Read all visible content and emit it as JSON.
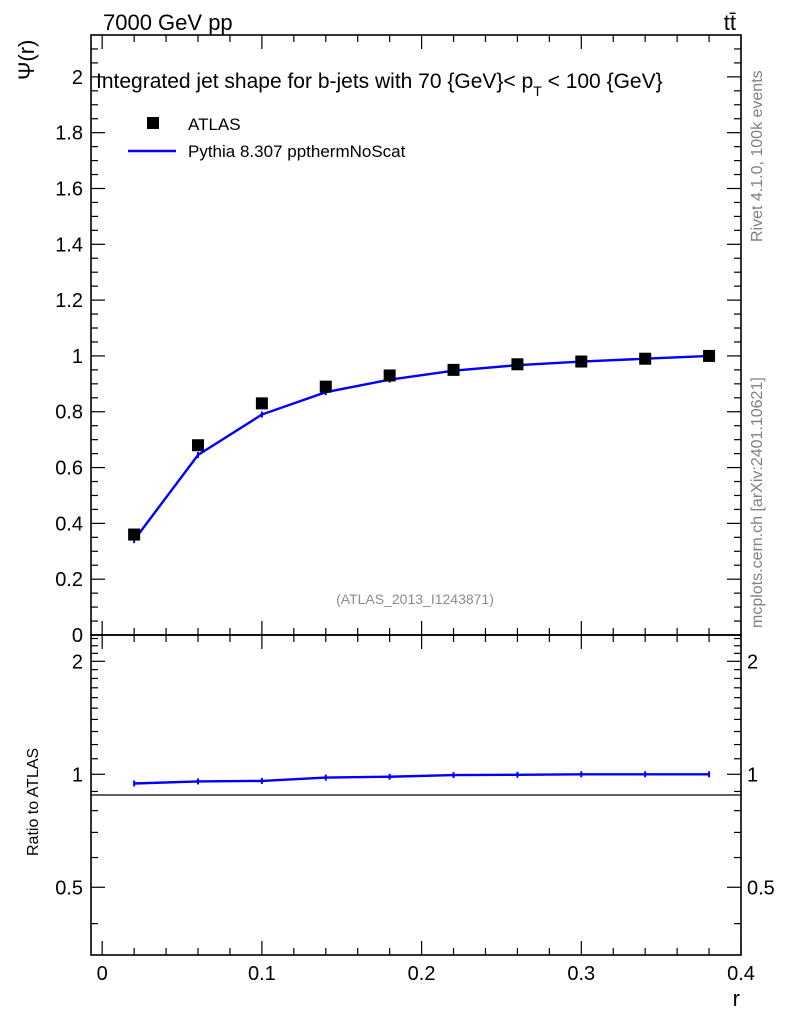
{
  "header": {
    "left": "7000 GeV pp",
    "right": "tt̄"
  },
  "side_text": {
    "rivet": "Rivet 4.1.0,  100k events",
    "mcplots": "mcplots.cern.ch [arXiv:2401.10621]"
  },
  "chart_data": {
    "type": "line",
    "title": "Integrated jet shape for b-jets with 70 {GeV}< p_T < 100 {GeV}",
    "title_parts": {
      "main": "Integrated jet shape for b-jets with 70 {GeV}< p",
      "sub": "T",
      "tail": " < 100 {GeV}"
    },
    "analysis_id": "(ATLAS_2013_I1243871)",
    "xlabel": "r",
    "ylabel": "Ψ(r)",
    "ratio_ylabel": "Ratio to ATLAS",
    "xlim": [
      -0.007,
      0.4
    ],
    "ylim": [
      0,
      2.15
    ],
    "ratio_ylim": [
      0.33,
      2.35
    ],
    "ratio_scale": "log",
    "x_ticks": [
      "0",
      "0.1",
      "0.2",
      "0.3",
      "0.4"
    ],
    "y_ticks": [
      "0",
      "0.2",
      "0.4",
      "0.6",
      "0.8",
      "1",
      "1.2",
      "1.4",
      "1.6",
      "1.8",
      "2"
    ],
    "ratio_ticks": [
      "0.5",
      "1",
      "2"
    ],
    "legend_position": "top-left",
    "x": [
      0.02,
      0.06,
      0.1,
      0.14,
      0.18,
      0.22,
      0.26,
      0.3,
      0.34,
      0.38
    ],
    "series": [
      {
        "name": "ATLAS",
        "style": "markers",
        "color": "#000000",
        "values": [
          0.36,
          0.68,
          0.83,
          0.89,
          0.93,
          0.95,
          0.97,
          0.98,
          0.99,
          1.0
        ]
      },
      {
        "name": "Pythia 8.307 ppthermNoScat",
        "style": "line",
        "color": "#0000ff",
        "values": [
          0.34,
          0.645,
          0.79,
          0.87,
          0.915,
          0.947,
          0.967,
          0.98,
          0.99,
          1.0
        ]
      }
    ],
    "ratio_values": [
      0.945,
      0.957,
      0.96,
      0.98,
      0.985,
      0.995,
      0.997,
      1.0,
      1.0,
      1.0
    ]
  }
}
